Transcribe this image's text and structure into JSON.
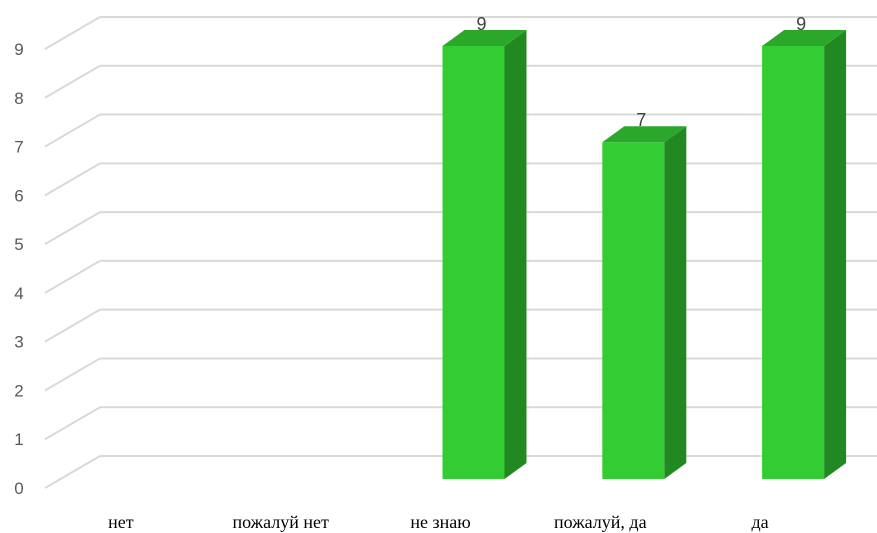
{
  "chart_data": {
    "type": "bar",
    "categories": [
      "нет",
      "пожалуй нет",
      "не знаю",
      "пожалуй, да",
      "да"
    ],
    "values": [
      0,
      0,
      9,
      7,
      9
    ],
    "data_labels": [
      "",
      "",
      "9",
      "7",
      "9"
    ],
    "ylim": [
      0,
      9
    ],
    "yticks": [
      "0",
      "1",
      "2",
      "3",
      "4",
      "5",
      "6",
      "7",
      "8",
      "9"
    ],
    "grid": true,
    "legend": "none",
    "style": "3d-column",
    "colors": {
      "bar_front": "#33CC33",
      "bar_side": "#228822",
      "bar_top": "#2BA82B",
      "grid": "#D9D9D9"
    }
  }
}
